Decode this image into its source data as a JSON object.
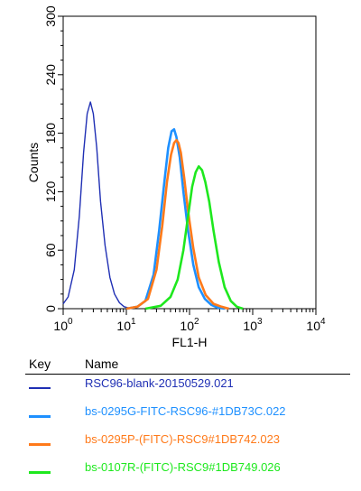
{
  "chart_data": {
    "type": "line",
    "title": "",
    "xlabel": "FL1-H",
    "ylabel": "Counts",
    "x_scale": "log",
    "xlim": [
      1,
      10000
    ],
    "ylim": [
      0,
      300
    ],
    "x_ticks": [
      {
        "value": 1,
        "base": "10",
        "exp": "0"
      },
      {
        "value": 10,
        "base": "10",
        "exp": "1"
      },
      {
        "value": 100,
        "base": "10",
        "exp": "2"
      },
      {
        "value": 1000,
        "base": "10",
        "exp": "3"
      },
      {
        "value": 10000,
        "base": "10",
        "exp": "4"
      }
    ],
    "y_ticks": [
      "0",
      "60",
      "120",
      "180",
      "240",
      "300"
    ],
    "grid": false,
    "legend_position": "below",
    "series": [
      {
        "name": "RSC96-blank-20150529.021",
        "color": "#1f2fb4",
        "x": [
          1,
          1.2,
          1.5,
          1.8,
          2.1,
          2.4,
          2.7,
          3.0,
          3.4,
          3.9,
          4.6,
          5.5,
          6.5,
          7.8,
          9.2,
          10.5,
          12
        ],
        "y": [
          5,
          12,
          40,
          95,
          160,
          200,
          212,
          200,
          165,
          110,
          65,
          32,
          15,
          6,
          2,
          1,
          0
        ]
      },
      {
        "name": "bs-0295G-FITC-RSC96-#1DB73C.022",
        "color": "#1e90ff",
        "x": [
          10,
          15,
          20,
          27,
          33,
          40,
          46,
          52,
          57,
          62,
          70,
          80,
          95,
          115,
          140,
          175,
          220,
          280,
          360
        ],
        "y": [
          0,
          2,
          8,
          35,
          80,
          130,
          165,
          182,
          184,
          176,
          155,
          120,
          80,
          45,
          22,
          10,
          4,
          1,
          0
        ]
      },
      {
        "name": "bs-0295P-(FITC)-RSC9#1DB742.023",
        "color": "#ff7a1a",
        "x": [
          10,
          15,
          22,
          30,
          37,
          44,
          51,
          57,
          62,
          67,
          73,
          82,
          95,
          115,
          140,
          180,
          240,
          320,
          420
        ],
        "y": [
          0,
          2,
          10,
          40,
          85,
          130,
          158,
          170,
          173,
          170,
          160,
          135,
          100,
          62,
          32,
          14,
          5,
          2,
          0
        ]
      },
      {
        "name": "bs-0107R-(FITC)-RSC9#1DB749.026",
        "color": "#1ee81e",
        "x": [
          20,
          35,
          50,
          65,
          80,
          95,
          110,
          125,
          140,
          158,
          178,
          205,
          240,
          290,
          360,
          450,
          560,
          700
        ],
        "y": [
          0,
          3,
          12,
          30,
          60,
          95,
          125,
          140,
          146,
          142,
          130,
          110,
          80,
          48,
          22,
          8,
          2,
          0
        ]
      }
    ]
  },
  "key": {
    "key_header": "Key",
    "name_header": "Name"
  }
}
